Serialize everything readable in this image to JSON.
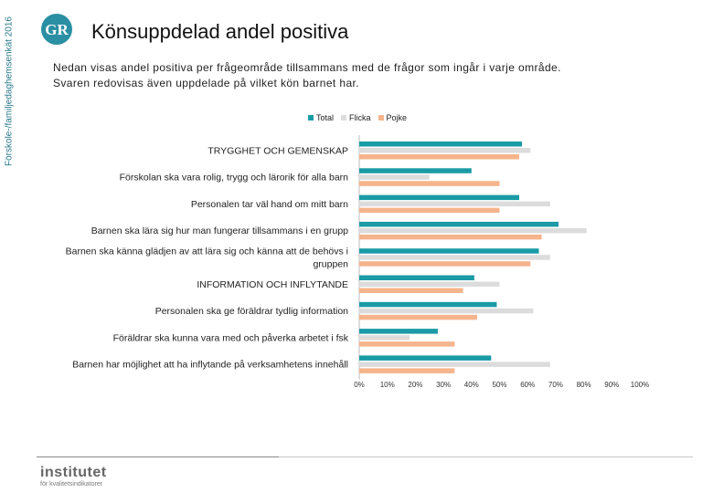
{
  "side_label": "Förskole-/familjedaghemsenkät 2016",
  "logo_text": "GR",
  "title": "Könsuppdelad andel positiva",
  "subtitle_line1": "Nedan visas andel positiva per frågeområde tillsammans med de frågor som ingår i varje område.",
  "subtitle_line2": "Svaren redovisas även uppdelade på vilket kön barnet har.",
  "colors": {
    "total": "#1a9ba6",
    "flicka": "#dcdcdc",
    "pojke": "#f5b48c"
  },
  "footer": {
    "brand": "institutet",
    "sub": "för kvalitetsindikatorer"
  },
  "chart_data": {
    "type": "bar",
    "orientation": "horizontal",
    "categories": [
      [
        "TRYGGHET OCH GEMENSKAP"
      ],
      [
        "Förskolan ska vara rolig, trygg och lärorik för alla barn"
      ],
      [
        "Personalen tar väl hand om mitt barn"
      ],
      [
        "Barnen ska lära sig hur man fungerar tillsammans i en grupp"
      ],
      [
        "Barnen ska känna glädjen av att lära sig och känna att de behövs i",
        "gruppen"
      ],
      [
        "INFORMATION OCH INFLYTANDE"
      ],
      [
        "Personalen ska ge föräldrar tydlig information"
      ],
      [
        "Föräldrar ska kunna vara med och påverka arbetet i fsk"
      ],
      [
        "Barnen har möjlighet att ha inflytande på verksamhetens innehåll"
      ]
    ],
    "series": [
      {
        "name": "Total",
        "values": [
          58,
          40,
          57,
          71,
          64,
          41,
          49,
          28,
          47
        ]
      },
      {
        "name": "Flicka",
        "values": [
          61,
          25,
          68,
          81,
          68,
          50,
          62,
          18,
          68
        ]
      },
      {
        "name": "Pojke",
        "values": [
          57,
          50,
          50,
          65,
          61,
          37,
          42,
          34,
          34
        ]
      }
    ],
    "xlim": [
      0,
      100
    ],
    "xticks": [
      "0%",
      "10%",
      "20%",
      "30%",
      "40%",
      "50%",
      "60%",
      "70%",
      "80%",
      "90%",
      "100%"
    ],
    "legend": "top"
  }
}
